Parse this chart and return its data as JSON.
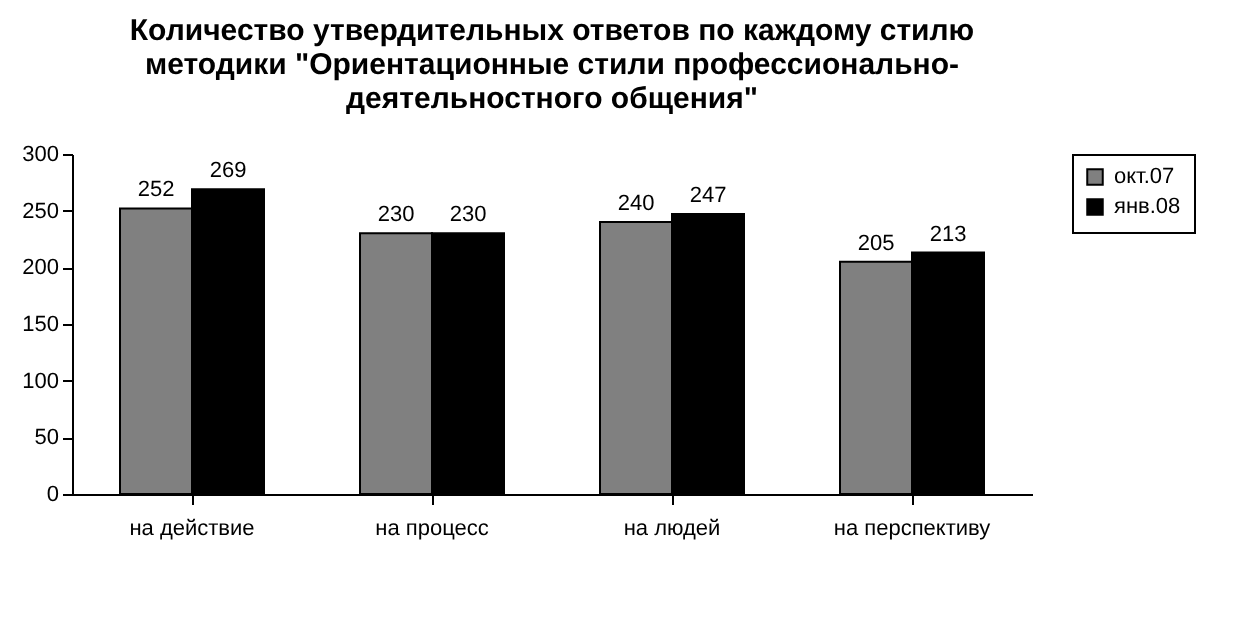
{
  "chart_data": {
    "type": "bar",
    "title": "Количество утвердительных ответов по каждому стилю методики \"Ориентационные стили профессионально-деятельностного общения\"",
    "categories": [
      "на действие",
      "на процесс",
      "на людей",
      "на перспективу"
    ],
    "series": [
      {
        "name": "окт.07",
        "color": "#808080",
        "values": [
          252,
          230,
          240,
          205
        ]
      },
      {
        "name": "янв.08",
        "color": "#000000",
        "values": [
          269,
          230,
          247,
          213
        ]
      }
    ],
    "ylim": [
      0,
      300
    ],
    "yticks": [
      0,
      50,
      100,
      150,
      200,
      250,
      300
    ],
    "grid": false,
    "legend": "right",
    "data_labels": true
  }
}
